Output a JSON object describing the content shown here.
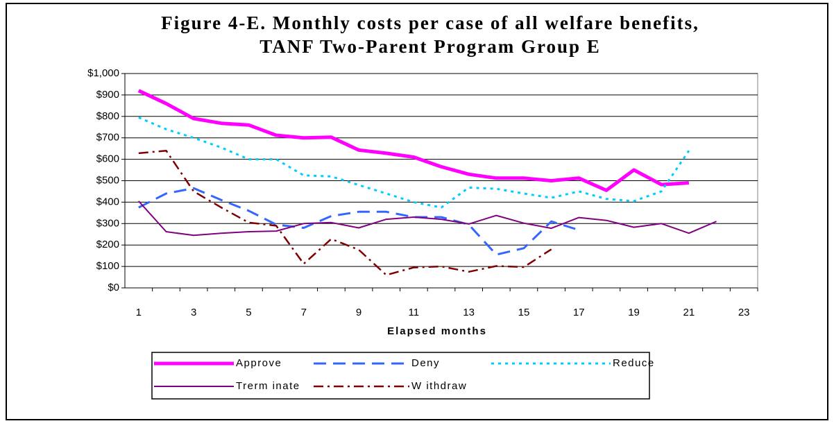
{
  "chart_data": {
    "type": "line",
    "title": "Figure 4-E.  Monthly costs per case of all welfare benefits,",
    "subtitle": "TANF Two-Parent Program Group E",
    "x_label": "Elapsed months",
    "categories": [
      "1",
      null,
      "3",
      null,
      "5",
      null,
      "7",
      null,
      "9",
      null,
      "11",
      null,
      "13",
      null,
      "15",
      null,
      "17",
      null,
      "19",
      null,
      "21",
      null,
      "23"
    ],
    "ylim": [
      0,
      1000
    ],
    "yticks": [
      {
        "value": 0,
        "label": "$0"
      },
      {
        "value": 100,
        "label": "$100"
      },
      {
        "value": 200,
        "label": "$200"
      },
      {
        "value": 300,
        "label": "$300"
      },
      {
        "value": 400,
        "label": "$400"
      },
      {
        "value": 500,
        "label": "$500"
      },
      {
        "value": 600,
        "label": "$600"
      },
      {
        "value": 700,
        "label": "$700"
      },
      {
        "value": 800,
        "label": "$800"
      },
      {
        "value": 900,
        "label": "$900"
      },
      {
        "value": 1000,
        "label": "$1,000"
      }
    ],
    "grid": true,
    "series": [
      {
        "name": "Approve",
        "color": "#ff00ff",
        "values": [
          920,
          860,
          790,
          768,
          760,
          712,
          700,
          703,
          643,
          628,
          610,
          565,
          530,
          512,
          512,
          500,
          512,
          455,
          550,
          482,
          490,
          null,
          null
        ]
      },
      {
        "name": "Deny",
        "color": "#3366ff",
        "values": [
          375,
          440,
          465,
          410,
          360,
          295,
          280,
          335,
          355,
          355,
          330,
          330,
          295,
          155,
          185,
          310,
          270,
          null,
          null,
          null,
          null,
          null,
          null
        ]
      },
      {
        "name": "Reduce",
        "color": "#00ccff",
        "values": [
          795,
          740,
          700,
          655,
          600,
          600,
          525,
          520,
          480,
          440,
          400,
          375,
          468,
          462,
          440,
          420,
          450,
          415,
          405,
          450,
          640,
          null,
          null
        ]
      },
      {
        "name": "Trerm inate",
        "color": "#800080",
        "values": [
          405,
          262,
          245,
          255,
          262,
          265,
          300,
          305,
          280,
          320,
          330,
          320,
          298,
          338,
          302,
          278,
          328,
          315,
          283,
          300,
          255,
          310,
          null
        ]
      },
      {
        "name": "W ithdraw",
        "color": "#800000",
        "values": [
          628,
          640,
          450,
          375,
          305,
          290,
          112,
          228,
          178,
          60,
          95,
          100,
          75,
          102,
          97,
          180,
          null,
          null,
          null,
          null,
          null,
          null,
          null
        ]
      }
    ]
  }
}
